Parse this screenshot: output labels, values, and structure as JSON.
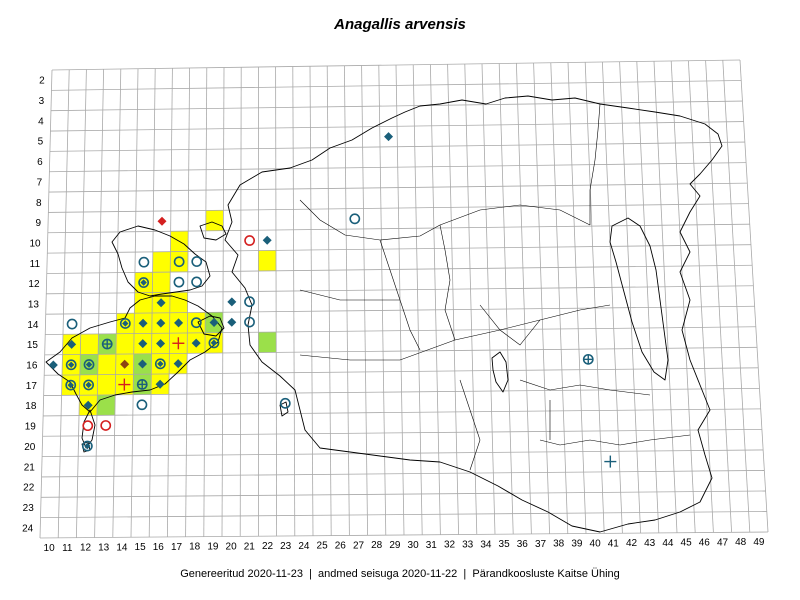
{
  "title": "Anagallis arvensis",
  "footer": {
    "generated": "Genereeritud 2020-11-23",
    "data_state": "andmed seisuga 2020-11-22",
    "organization": "Pärandkoosluste Kaitse Ühing",
    "separator": "|"
  },
  "grid": {
    "columns": [
      10,
      11,
      12,
      13,
      14,
      15,
      16,
      17,
      18,
      19,
      20,
      21,
      22,
      23,
      24,
      25,
      26,
      27,
      28,
      29,
      30,
      31,
      32,
      33,
      34,
      35,
      36,
      37,
      38,
      39,
      40,
      41,
      42,
      43,
      44,
      45,
      46,
      47,
      48,
      49
    ],
    "rows": [
      2,
      3,
      4,
      5,
      6,
      7,
      8,
      9,
      10,
      11,
      12,
      13,
      14,
      15,
      16,
      17,
      18,
      19,
      20,
      21,
      22,
      23,
      24
    ]
  },
  "colors": {
    "grid": "#a9a9a9",
    "coast": "#000000",
    "cell_yellow": "#ffff00",
    "cell_green": "#9be04a",
    "symbol_blue": "#1a5f7a",
    "symbol_red": "#d42020",
    "symbol_brown": "#8b4513"
  },
  "legend_meaning": {
    "circle": "open circle",
    "diamond": "filled diamond",
    "circle_diamond": "circle with diamond",
    "circle_plus": "circle with cross",
    "plus": "cross"
  },
  "filled_cells": [
    {
      "col": 19,
      "row": 9,
      "fill": "yellow"
    },
    {
      "col": 17,
      "row": 10,
      "fill": "yellow"
    },
    {
      "col": 16,
      "row": 11,
      "fill": "yellow"
    },
    {
      "col": 17,
      "row": 11,
      "fill": "yellow"
    },
    {
      "col": 22,
      "row": 11,
      "fill": "yellow"
    },
    {
      "col": 15,
      "row": 12,
      "fill": "yellow"
    },
    {
      "col": 16,
      "row": 12,
      "fill": "yellow"
    },
    {
      "col": 15,
      "row": 13,
      "fill": "yellow"
    },
    {
      "col": 16,
      "row": 13,
      "fill": "yellow"
    },
    {
      "col": 17,
      "row": 13,
      "fill": "yellow"
    },
    {
      "col": 14,
      "row": 14,
      "fill": "yellow"
    },
    {
      "col": 15,
      "row": 14,
      "fill": "yellow"
    },
    {
      "col": 16,
      "row": 14,
      "fill": "yellow"
    },
    {
      "col": 17,
      "row": 14,
      "fill": "yellow"
    },
    {
      "col": 18,
      "row": 14,
      "fill": "yellow"
    },
    {
      "col": 19,
      "row": 14,
      "fill": "green"
    },
    {
      "col": 11,
      "row": 15,
      "fill": "yellow"
    },
    {
      "col": 12,
      "row": 15,
      "fill": "yellow"
    },
    {
      "col": 13,
      "row": 15,
      "fill": "green"
    },
    {
      "col": 14,
      "row": 15,
      "fill": "yellow"
    },
    {
      "col": 15,
      "row": 15,
      "fill": "yellow"
    },
    {
      "col": 16,
      "row": 15,
      "fill": "yellow"
    },
    {
      "col": 17,
      "row": 15,
      "fill": "yellow"
    },
    {
      "col": 18,
      "row": 15,
      "fill": "yellow"
    },
    {
      "col": 19,
      "row": 15,
      "fill": "yellow"
    },
    {
      "col": 22,
      "row": 15,
      "fill": "green"
    },
    {
      "col": 11,
      "row": 16,
      "fill": "yellow"
    },
    {
      "col": 12,
      "row": 16,
      "fill": "green"
    },
    {
      "col": 13,
      "row": 16,
      "fill": "yellow"
    },
    {
      "col": 14,
      "row": 16,
      "fill": "yellow"
    },
    {
      "col": 15,
      "row": 16,
      "fill": "green"
    },
    {
      "col": 16,
      "row": 16,
      "fill": "yellow"
    },
    {
      "col": 17,
      "row": 16,
      "fill": "yellow"
    },
    {
      "col": 11,
      "row": 17,
      "fill": "yellow"
    },
    {
      "col": 12,
      "row": 17,
      "fill": "yellow"
    },
    {
      "col": 13,
      "row": 17,
      "fill": "yellow"
    },
    {
      "col": 14,
      "row": 17,
      "fill": "yellow"
    },
    {
      "col": 15,
      "row": 17,
      "fill": "green"
    },
    {
      "col": 16,
      "row": 17,
      "fill": "yellow"
    },
    {
      "col": 12,
      "row": 18,
      "fill": "yellow"
    },
    {
      "col": 13,
      "row": 18,
      "fill": "green"
    }
  ],
  "markers": [
    {
      "col": 29,
      "row": 5,
      "type": "diamond",
      "color": "blue"
    },
    {
      "col": 16,
      "row": 9,
      "type": "diamond",
      "color": "red"
    },
    {
      "col": 27,
      "row": 9,
      "type": "circle",
      "color": "blue"
    },
    {
      "col": 21,
      "row": 10,
      "type": "circle",
      "color": "red"
    },
    {
      "col": 22,
      "row": 10,
      "type": "diamond",
      "color": "blue"
    },
    {
      "col": 15,
      "row": 11,
      "type": "circle",
      "color": "blue"
    },
    {
      "col": 17,
      "row": 11,
      "type": "circle",
      "color": "blue"
    },
    {
      "col": 18,
      "row": 11,
      "type": "circle",
      "color": "blue"
    },
    {
      "col": 15,
      "row": 12,
      "type": "circle_diamond",
      "color": "blue"
    },
    {
      "col": 17,
      "row": 12,
      "type": "circle",
      "color": "blue"
    },
    {
      "col": 18,
      "row": 12,
      "type": "circle",
      "color": "blue"
    },
    {
      "col": 16,
      "row": 13,
      "type": "diamond",
      "color": "blue"
    },
    {
      "col": 20,
      "row": 13,
      "type": "diamond",
      "color": "blue"
    },
    {
      "col": 21,
      "row": 13,
      "type": "circle",
      "color": "blue"
    },
    {
      "col": 11,
      "row": 14,
      "type": "circle",
      "color": "blue"
    },
    {
      "col": 14,
      "row": 14,
      "type": "circle_diamond",
      "color": "blue"
    },
    {
      "col": 15,
      "row": 14,
      "type": "diamond",
      "color": "blue"
    },
    {
      "col": 16,
      "row": 14,
      "type": "diamond",
      "color": "blue"
    },
    {
      "col": 17,
      "row": 14,
      "type": "diamond",
      "color": "blue"
    },
    {
      "col": 18,
      "row": 14,
      "type": "circle",
      "color": "blue"
    },
    {
      "col": 19,
      "row": 14,
      "type": "diamond",
      "color": "blue"
    },
    {
      "col": 20,
      "row": 14,
      "type": "diamond",
      "color": "blue"
    },
    {
      "col": 21,
      "row": 14,
      "type": "circle",
      "color": "blue"
    },
    {
      "col": 11,
      "row": 15,
      "type": "diamond",
      "color": "blue"
    },
    {
      "col": 13,
      "row": 15,
      "type": "circle_plus",
      "color": "blue"
    },
    {
      "col": 15,
      "row": 15,
      "type": "diamond",
      "color": "blue"
    },
    {
      "col": 16,
      "row": 15,
      "type": "diamond",
      "color": "blue"
    },
    {
      "col": 17,
      "row": 15,
      "type": "plus",
      "color": "red"
    },
    {
      "col": 18,
      "row": 15,
      "type": "diamond",
      "color": "blue"
    },
    {
      "col": 19,
      "row": 15,
      "type": "circle_diamond",
      "color": "blue"
    },
    {
      "col": 10,
      "row": 16,
      "type": "diamond",
      "color": "blue"
    },
    {
      "col": 11,
      "row": 16,
      "type": "circle_diamond",
      "color": "blue"
    },
    {
      "col": 12,
      "row": 16,
      "type": "circle_diamond",
      "color": "blue"
    },
    {
      "col": 14,
      "row": 16,
      "type": "diamond",
      "color": "brown"
    },
    {
      "col": 15,
      "row": 16,
      "type": "diamond",
      "color": "blue"
    },
    {
      "col": 16,
      "row": 16,
      "type": "circle_diamond",
      "color": "blue"
    },
    {
      "col": 17,
      "row": 16,
      "type": "diamond",
      "color": "blue"
    },
    {
      "col": 11,
      "row": 17,
      "type": "circle_diamond",
      "color": "blue"
    },
    {
      "col": 12,
      "row": 17,
      "type": "circle_diamond",
      "color": "blue"
    },
    {
      "col": 14,
      "row": 17,
      "type": "plus",
      "color": "red"
    },
    {
      "col": 15,
      "row": 17,
      "type": "circle_plus",
      "color": "blue"
    },
    {
      "col": 16,
      "row": 17,
      "type": "diamond",
      "color": "blue"
    },
    {
      "col": 12,
      "row": 18,
      "type": "diamond",
      "color": "blue"
    },
    {
      "col": 15,
      "row": 18,
      "type": "circle",
      "color": "blue"
    },
    {
      "col": 23,
      "row": 18,
      "type": "circle",
      "color": "blue"
    },
    {
      "col": 12,
      "row": 19,
      "type": "circle",
      "color": "red"
    },
    {
      "col": 13,
      "row": 19,
      "type": "circle",
      "color": "red"
    },
    {
      "col": 12,
      "row": 20,
      "type": "circle_diamond",
      "color": "blue"
    },
    {
      "col": 40,
      "row": 16,
      "type": "circle_plus",
      "color": "blue"
    },
    {
      "col": 41,
      "row": 21,
      "type": "plus",
      "color": "blue"
    }
  ]
}
